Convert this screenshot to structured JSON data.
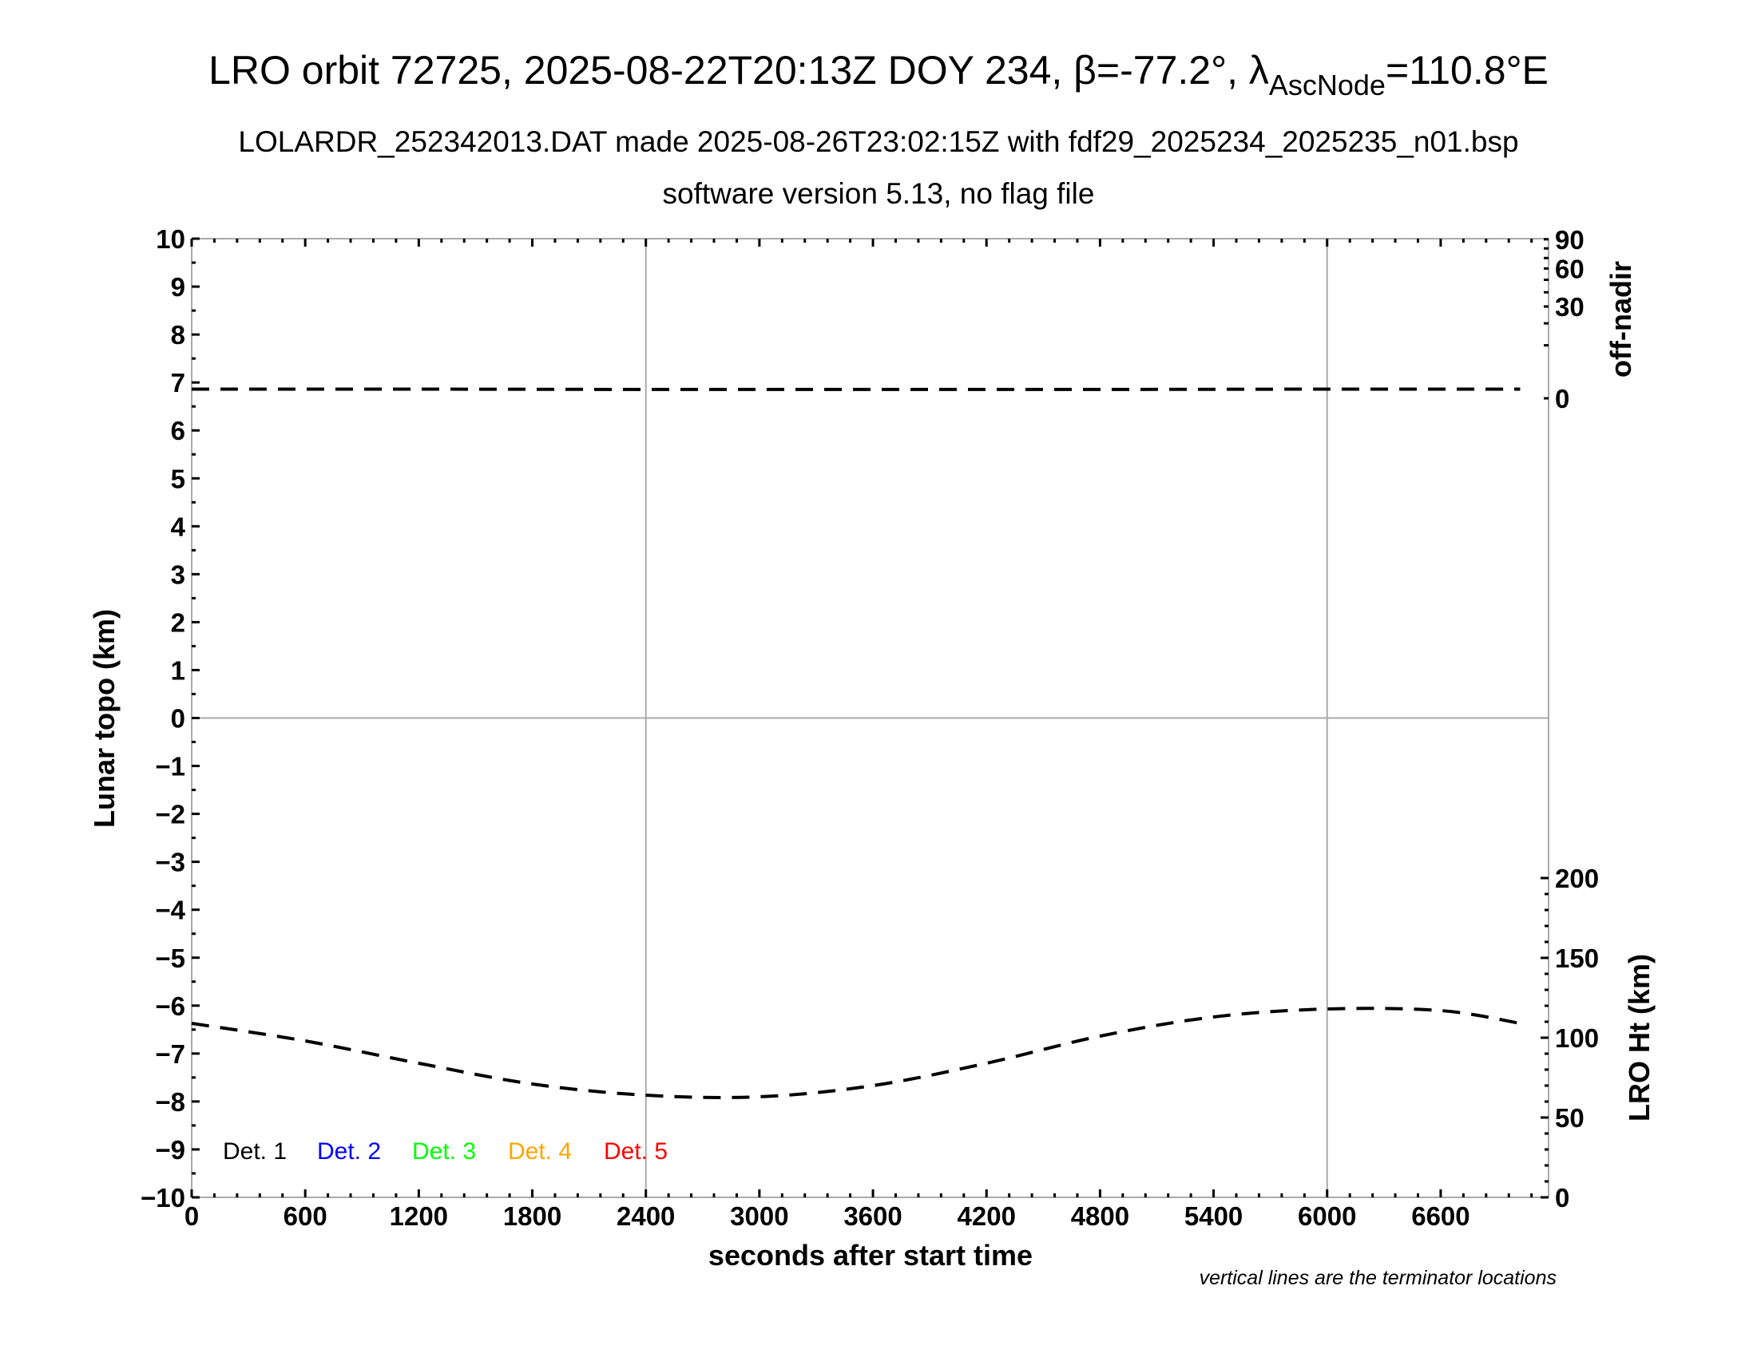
{
  "title": {
    "main_prefix": "LRO orbit 72725, 2025-08-22T20:13Z DOY 234, β=-77.2°, λ",
    "main_subscript": "AscNode",
    "main_suffix": "=110.8°E",
    "subtitle": "LOLARDR_252342013.DAT made 2025-08-26T23:02:15Z with fdf29_2025234_2025235_n01.bsp",
    "subtitle2": "software version 5.13, no flag file"
  },
  "note": "vertical lines are the terminator locations",
  "chart_data": {
    "type": "line",
    "xlabel": "seconds after start time",
    "ylabel": "Lunar topo (km)",
    "xlim": [
      0,
      7170
    ],
    "ylim": [
      -10,
      10
    ],
    "xticks": [
      "0",
      "600",
      "1200",
      "1800",
      "2400",
      "3000",
      "3600",
      "4200",
      "4800",
      "5400",
      "6000",
      "6600"
    ],
    "yticks": [
      "10",
      "9",
      "8",
      "7",
      "6",
      "5",
      "4",
      "3",
      "2",
      "1",
      "0",
      "−1",
      "−2",
      "−3",
      "−4",
      "−5",
      "−6",
      "−7",
      "−8",
      "−9",
      "−10"
    ],
    "right_axis_top": {
      "label": "off-nadir",
      "scale": "sqrt",
      "range": [
        0,
        90
      ],
      "ticks": [
        "0",
        "30",
        "60",
        "90"
      ]
    },
    "right_axis_bottom": {
      "label": "LRO Ht (km)",
      "range": [
        0,
        300
      ],
      "ticks": [
        "0",
        "50",
        "100",
        "150",
        "200"
      ]
    },
    "terminator_lines_x": [
      2400,
      6000
    ],
    "zero_line": true,
    "legend": [
      {
        "name": "Det. 1",
        "color": "#000000"
      },
      {
        "name": "Det. 2",
        "color": "#0000ff"
      },
      {
        "name": "Det. 3",
        "color": "#00ff00"
      },
      {
        "name": "Det. 4",
        "color": "#ffa500"
      },
      {
        "name": "Det. 5",
        "color": "#ff0000"
      }
    ],
    "series": [
      {
        "name": "off-nadir",
        "axis": "off-nadir",
        "style": "dashed",
        "x": [
          0,
          1200,
          2400,
          3600,
          4800,
          6000,
          7020
        ],
        "y": [
          0.3,
          0.3,
          0.28,
          0.28,
          0.28,
          0.3,
          0.3
        ]
      },
      {
        "name": "LRO Ht",
        "axis": "LRO Ht (km)",
        "style": "dashed",
        "x": [
          0,
          600,
          1200,
          1800,
          2400,
          3000,
          3600,
          4200,
          4800,
          5400,
          6000,
          6600,
          7020
        ],
        "y": [
          109,
          98,
          84,
          71,
          64,
          63,
          70,
          84,
          101,
          113,
          118,
          117,
          109
        ]
      }
    ]
  }
}
